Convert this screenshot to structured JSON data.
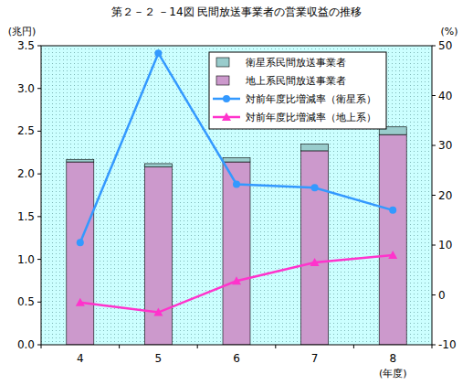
{
  "chart_data": {
    "type": "bar",
    "title": "第２－２ －14図 民間放送事業者の営業収益の推移",
    "y_label": "(兆円)",
    "y2_label": "(%)",
    "x_label": "(年度)",
    "categories": [
      "4",
      "5",
      "6",
      "7",
      "8"
    ],
    "stacked": true,
    "grid": false,
    "legend": "upper right",
    "ylim": [
      0,
      3.5
    ],
    "yticks": [
      {
        "value": 0,
        "label": "0.0"
      },
      0.5,
      {
        "value": 1,
        "label": "1.0"
      },
      1.5,
      {
        "value": 2,
        "label": "2.0"
      },
      2.5,
      {
        "value": 3,
        "label": "3.0"
      },
      3.5
    ],
    "y2lim": [
      -10,
      50
    ],
    "y2ticks": [
      -10,
      0,
      10,
      20,
      30,
      40,
      50
    ],
    "series": [
      {
        "name": "衛星系民間放送事業者",
        "type": "bar",
        "color": "#99cccc",
        "values": [
          0.03,
          0.04,
          0.05,
          0.08,
          0.09
        ]
      },
      {
        "name": "地上系民間放送事業者",
        "type": "bar",
        "color": "#cc99cc",
        "values": [
          2.14,
          2.08,
          2.14,
          2.27,
          2.46
        ]
      },
      {
        "name": "対前年度比増減率（衛星系）",
        "type": "line",
        "axis": "y2",
        "color": "#3399ff",
        "marker": "circle",
        "values": [
          10.5,
          48.5,
          22.2,
          21.5,
          17.0
        ]
      },
      {
        "name": "対前年度比増減率（地上系）",
        "type": "line",
        "axis": "y2",
        "color": "#ff33cc",
        "marker": "triangle",
        "values": [
          -1.5,
          -3.5,
          2.8,
          6.5,
          8.0
        ]
      }
    ]
  }
}
